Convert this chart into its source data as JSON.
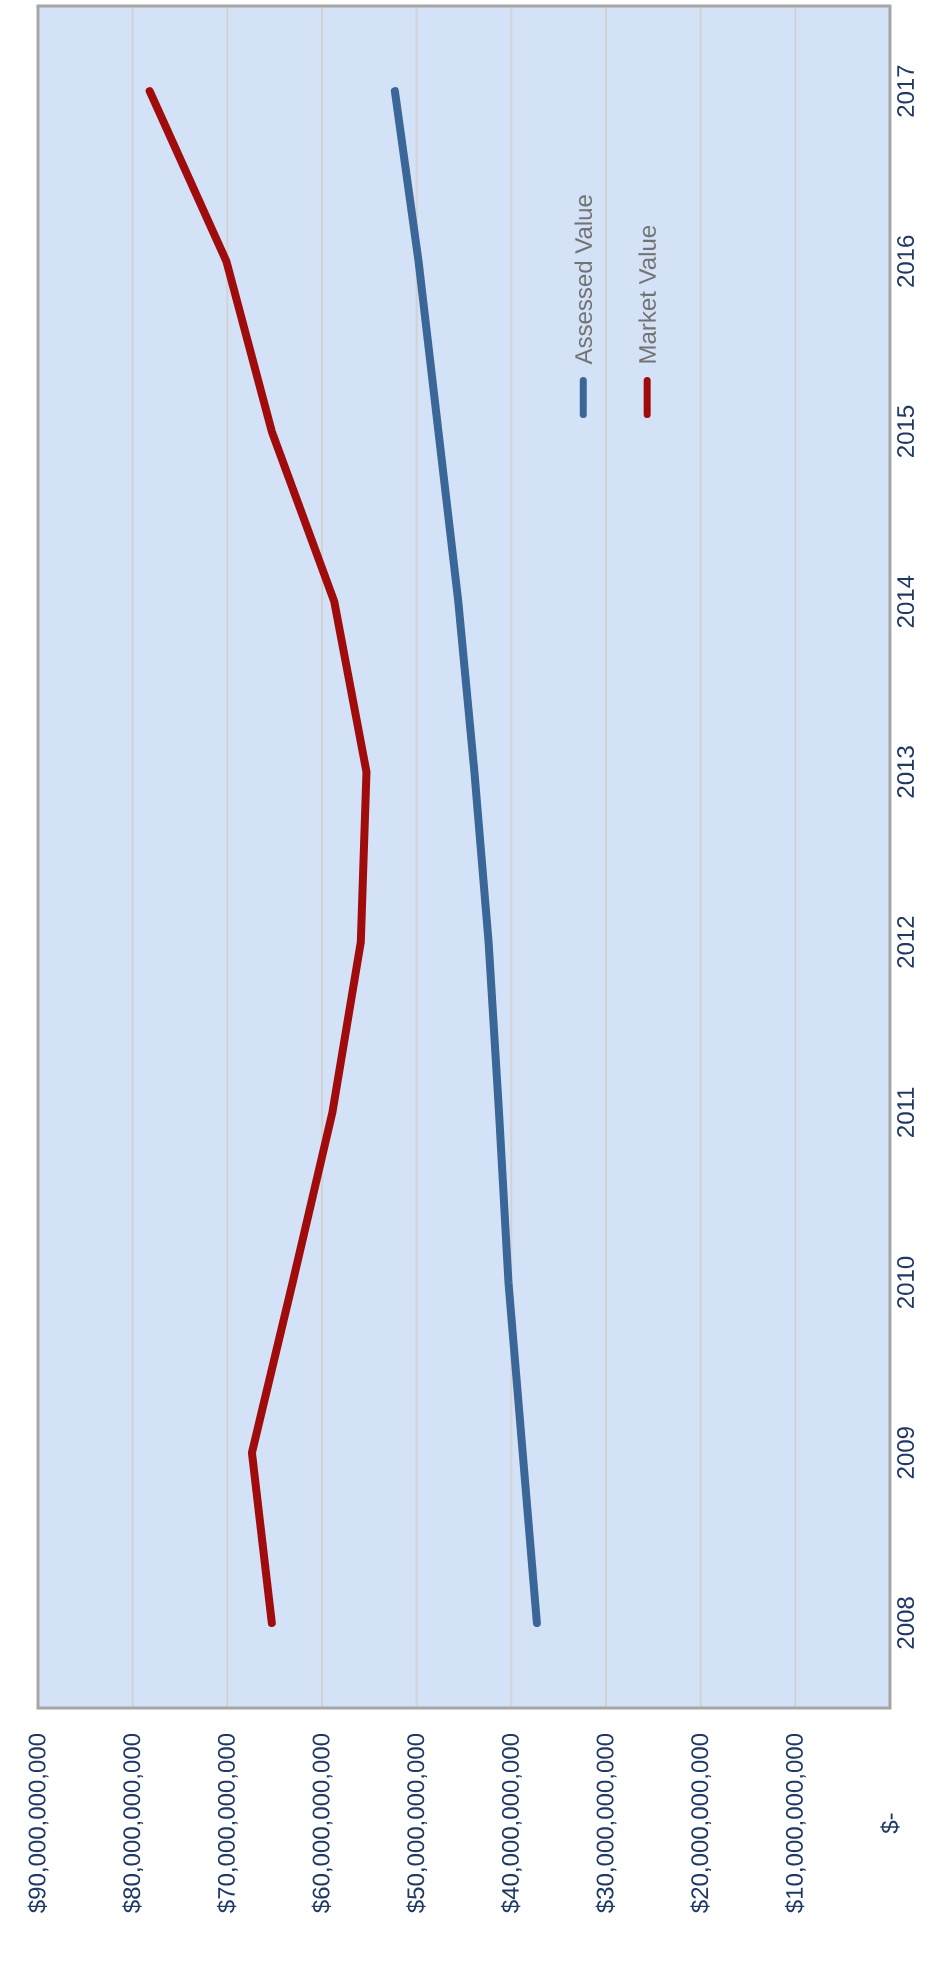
{
  "chart_data": {
    "type": "line",
    "orientation": "horizontal",
    "categories": [
      "2017",
      "2016",
      "2015",
      "2014",
      "2013",
      "2012",
      "2011",
      "2010",
      "2009",
      "2008"
    ],
    "series": [
      {
        "name": "Assessed Value",
        "color": "#3a6698",
        "values": [
          52300000000,
          49800000000,
          47700000000,
          45600000000,
          43900000000,
          42400000000,
          41300000000,
          40300000000,
          38800000000,
          37300000000
        ]
      },
      {
        "name": "Market Value",
        "color": "#a00c0c",
        "values": [
          78200000000,
          70100000000,
          65300000000,
          58700000000,
          55300000000,
          55900000000,
          58900000000,
          63100000000,
          67400000000,
          65300000000
        ]
      }
    ],
    "xlim": [
      90000000000,
      0
    ],
    "xticks": [
      {
        "value": 90000000000,
        "label": "$90,000,000,000"
      },
      {
        "value": 80000000000,
        "label": "$80,000,000,000"
      },
      {
        "value": 70000000000,
        "label": "$70,000,000,000"
      },
      {
        "value": 60000000000,
        "label": "$60,000,000,000"
      },
      {
        "value": 50000000000,
        "label": "$50,000,000,000"
      },
      {
        "value": 40000000000,
        "label": "$40,000,000,000"
      },
      {
        "value": 30000000000,
        "label": "$30,000,000,000"
      },
      {
        "value": 20000000000,
        "label": "$20,000,000,000"
      },
      {
        "value": 10000000000,
        "label": "$10,000,000,000"
      },
      {
        "value": 0,
        "label": "$-"
      }
    ],
    "grid": "x",
    "legend": "top right"
  }
}
